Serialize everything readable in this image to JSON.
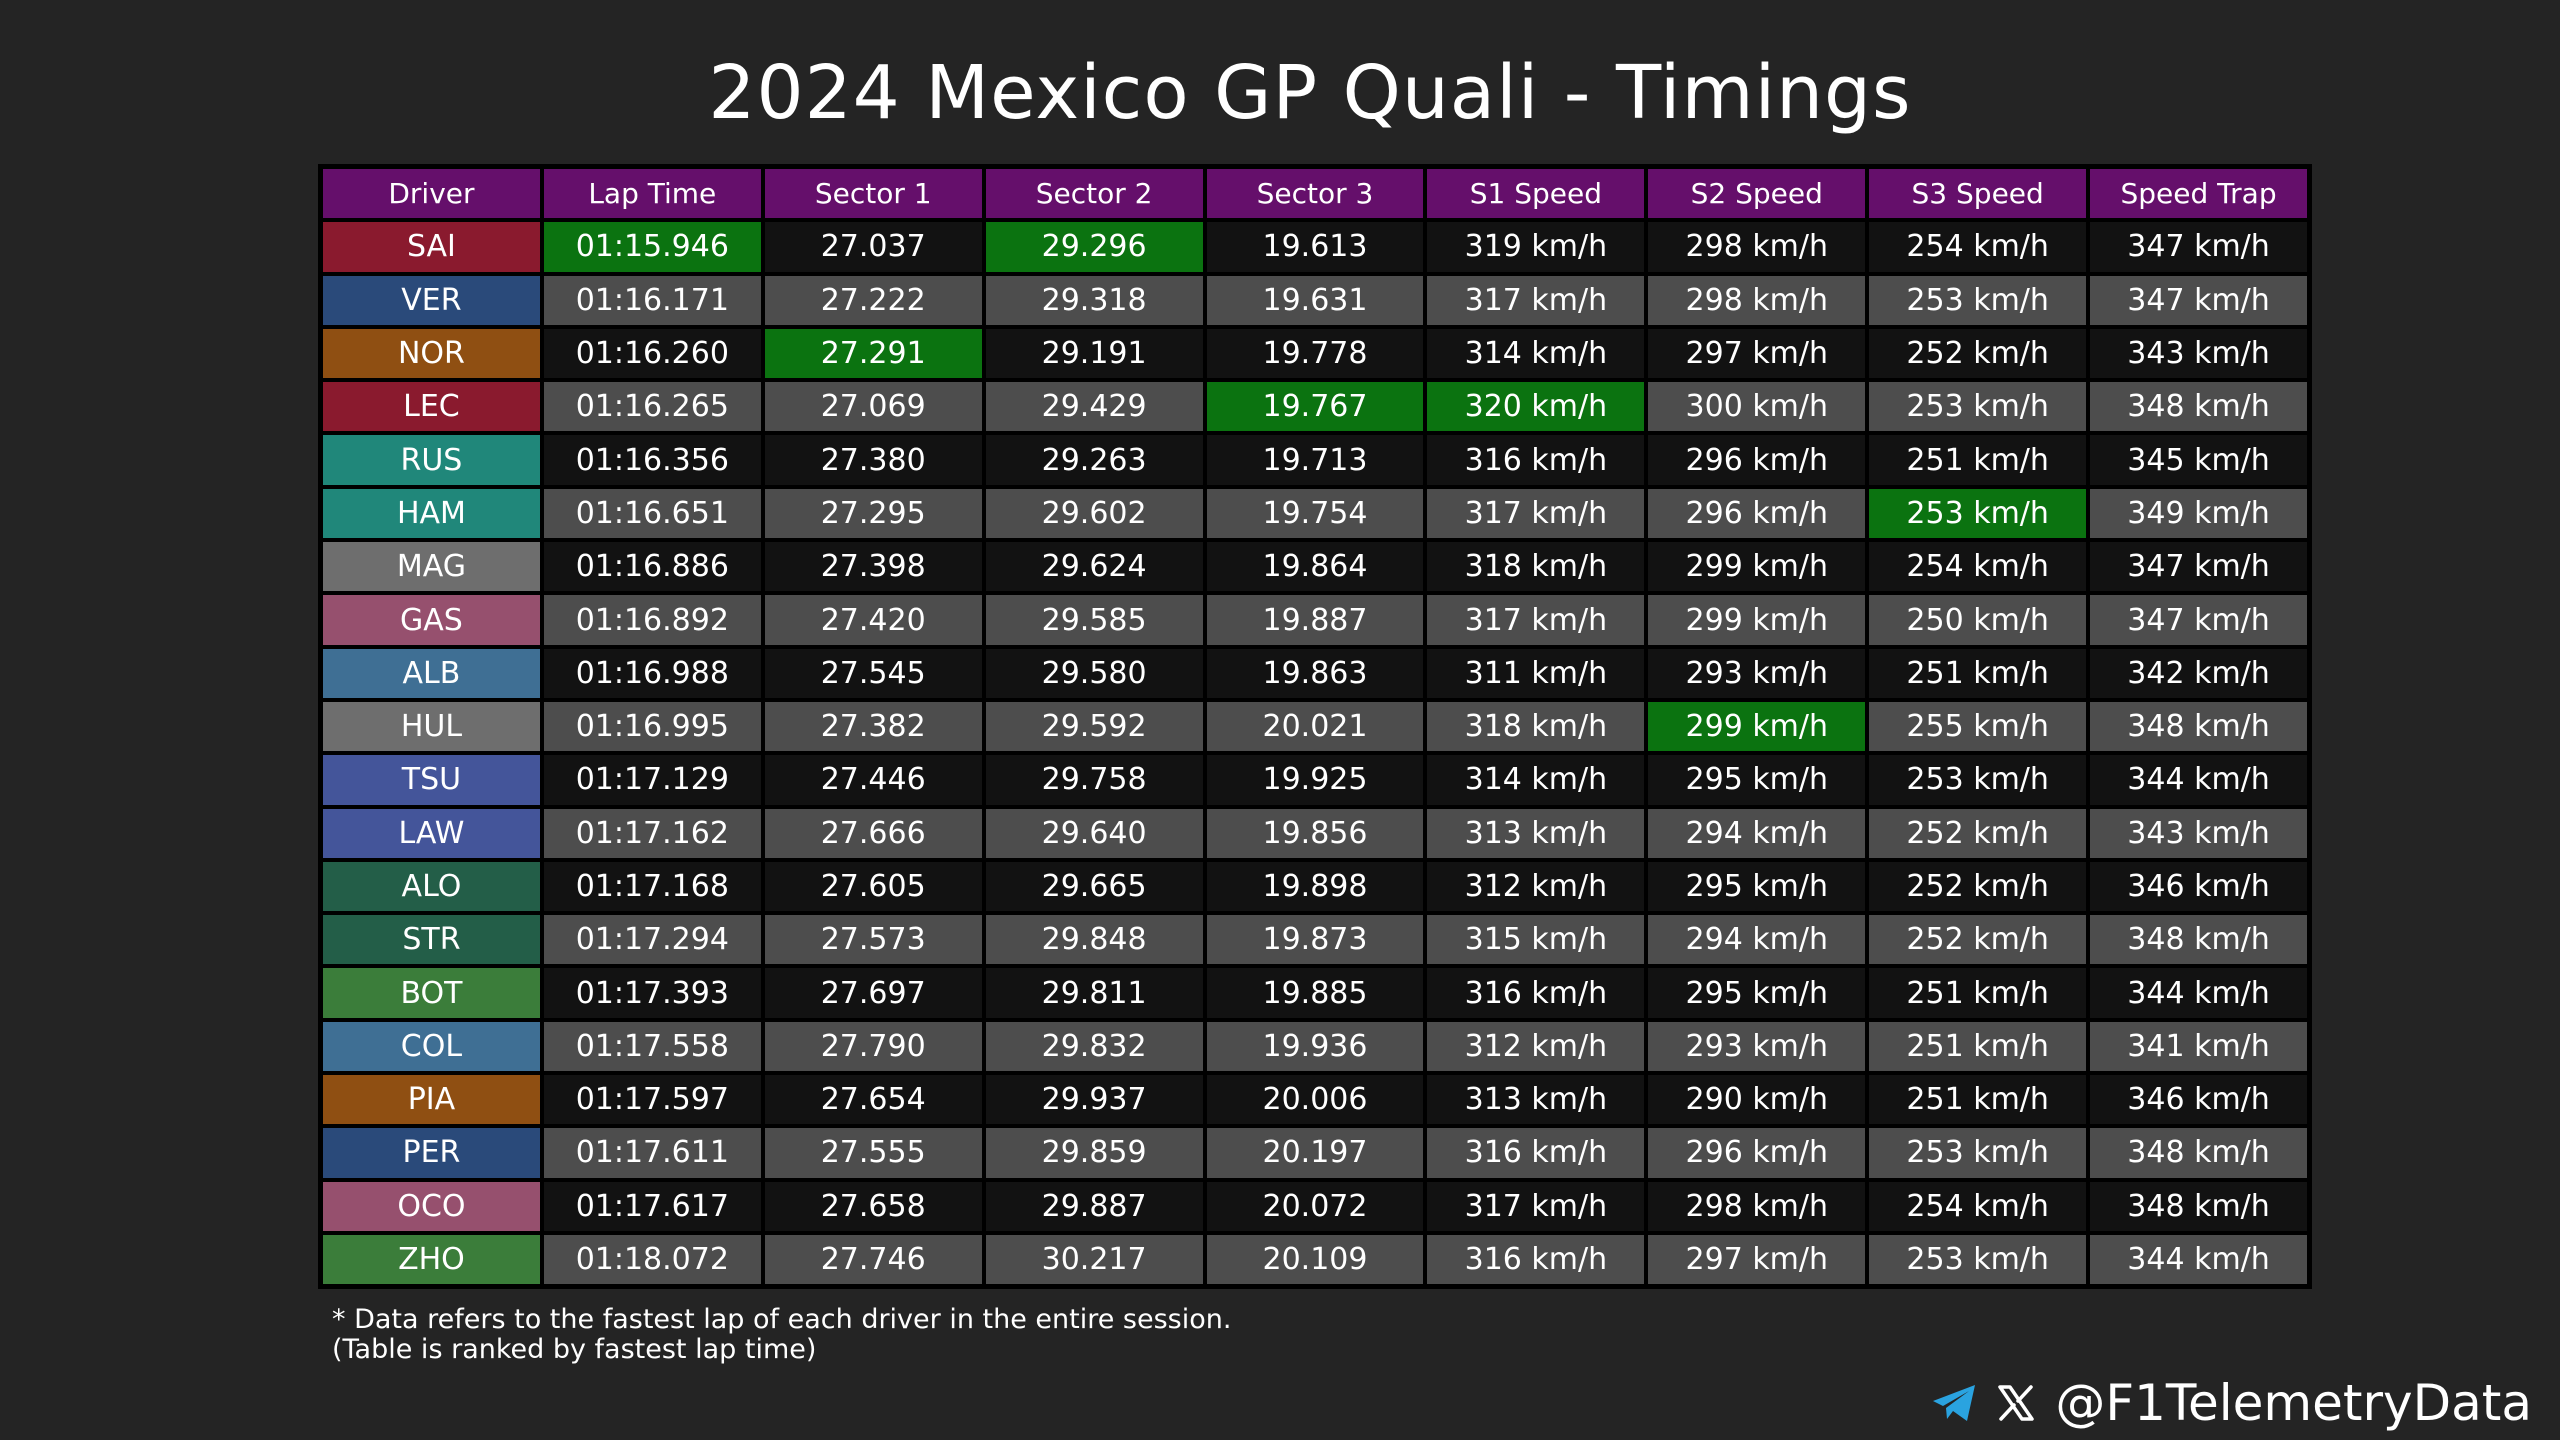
{
  "title": "2024 Mexico GP Quali - Timings",
  "watermark": "@F1TelemetryData",
  "chart_data": {
    "type": "table",
    "columns": [
      "Driver",
      "Lap Time",
      "Sector 1",
      "Sector 2",
      "Sector 3",
      "S1 Speed",
      "S2 Speed",
      "S3 Speed",
      "Speed Trap"
    ],
    "rows": [
      {
        "driver": "SAI",
        "team_color": "#8a1a2e",
        "cells": [
          "01:15.946",
          "27.037",
          "29.296",
          "19.613",
          "319 km/h",
          "298 km/h",
          "254 km/h",
          "347 km/h"
        ],
        "best": [
          1,
          3
        ]
      },
      {
        "driver": "VER",
        "team_color": "#2a4a7a",
        "cells": [
          "01:16.171",
          "27.222",
          "29.318",
          "19.631",
          "317 km/h",
          "298 km/h",
          "253 km/h",
          "347 km/h"
        ],
        "best": []
      },
      {
        "driver": "NOR",
        "team_color": "#8f4f12",
        "cells": [
          "01:16.260",
          "27.291",
          "29.191",
          "19.778",
          "314 km/h",
          "297 km/h",
          "252 km/h",
          "343 km/h"
        ],
        "best": [
          2
        ]
      },
      {
        "driver": "LEC",
        "team_color": "#8a1a2e",
        "cells": [
          "01:16.265",
          "27.069",
          "29.429",
          "19.767",
          "320 km/h",
          "300 km/h",
          "253 km/h",
          "348 km/h"
        ],
        "best": [
          4,
          5
        ]
      },
      {
        "driver": "RUS",
        "team_color": "#20877a",
        "cells": [
          "01:16.356",
          "27.380",
          "29.263",
          "19.713",
          "316 km/h",
          "296 km/h",
          "251 km/h",
          "345 km/h"
        ],
        "best": []
      },
      {
        "driver": "HAM",
        "team_color": "#20877a",
        "cells": [
          "01:16.651",
          "27.295",
          "29.602",
          "19.754",
          "317 km/h",
          "296 km/h",
          "253 km/h",
          "349 km/h"
        ],
        "best": [
          7
        ]
      },
      {
        "driver": "MAG",
        "team_color": "#6e6e6e",
        "cells": [
          "01:16.886",
          "27.398",
          "29.624",
          "19.864",
          "318 km/h",
          "299 km/h",
          "254 km/h",
          "347 km/h"
        ],
        "best": []
      },
      {
        "driver": "GAS",
        "team_color": "#96506e",
        "cells": [
          "01:16.892",
          "27.420",
          "29.585",
          "19.887",
          "317 km/h",
          "299 km/h",
          "250 km/h",
          "347 km/h"
        ],
        "best": []
      },
      {
        "driver": "ALB",
        "team_color": "#3f6f94",
        "cells": [
          "01:16.988",
          "27.545",
          "29.580",
          "19.863",
          "311 km/h",
          "293 km/h",
          "251 km/h",
          "342 km/h"
        ],
        "best": []
      },
      {
        "driver": "HUL",
        "team_color": "#6e6e6e",
        "cells": [
          "01:16.995",
          "27.382",
          "29.592",
          "20.021",
          "318 km/h",
          "299 km/h",
          "255 km/h",
          "348 km/h"
        ],
        "best": [
          6
        ]
      },
      {
        "driver": "TSU",
        "team_color": "#44559a",
        "cells": [
          "01:17.129",
          "27.446",
          "29.758",
          "19.925",
          "314 km/h",
          "295 km/h",
          "253 km/h",
          "344 km/h"
        ],
        "best": []
      },
      {
        "driver": "LAW",
        "team_color": "#44559a",
        "cells": [
          "01:17.162",
          "27.666",
          "29.640",
          "19.856",
          "313 km/h",
          "294 km/h",
          "252 km/h",
          "343 km/h"
        ],
        "best": []
      },
      {
        "driver": "ALO",
        "team_color": "#235e48",
        "cells": [
          "01:17.168",
          "27.605",
          "29.665",
          "19.898",
          "312 km/h",
          "295 km/h",
          "252 km/h",
          "346 km/h"
        ],
        "best": []
      },
      {
        "driver": "STR",
        "team_color": "#235e48",
        "cells": [
          "01:17.294",
          "27.573",
          "29.848",
          "19.873",
          "315 km/h",
          "294 km/h",
          "252 km/h",
          "348 km/h"
        ],
        "best": []
      },
      {
        "driver": "BOT",
        "team_color": "#3b7d3a",
        "cells": [
          "01:17.393",
          "27.697",
          "29.811",
          "19.885",
          "316 km/h",
          "295 km/h",
          "251 km/h",
          "344 km/h"
        ],
        "best": []
      },
      {
        "driver": "COL",
        "team_color": "#3f6f94",
        "cells": [
          "01:17.558",
          "27.790",
          "29.832",
          "19.936",
          "312 km/h",
          "293 km/h",
          "251 km/h",
          "341 km/h"
        ],
        "best": []
      },
      {
        "driver": "PIA",
        "team_color": "#8f4f12",
        "cells": [
          "01:17.597",
          "27.654",
          "29.937",
          "20.006",
          "313 km/h",
          "290 km/h",
          "251 km/h",
          "346 km/h"
        ],
        "best": []
      },
      {
        "driver": "PER",
        "team_color": "#2a4a7a",
        "cells": [
          "01:17.611",
          "27.555",
          "29.859",
          "20.197",
          "316 km/h",
          "296 km/h",
          "253 km/h",
          "348 km/h"
        ],
        "best": []
      },
      {
        "driver": "OCO",
        "team_color": "#96506e",
        "cells": [
          "01:17.617",
          "27.658",
          "29.887",
          "20.072",
          "317 km/h",
          "298 km/h",
          "254 km/h",
          "348 km/h"
        ],
        "best": []
      },
      {
        "driver": "ZHO",
        "team_color": "#3b7d3a",
        "cells": [
          "01:18.072",
          "27.746",
          "30.217",
          "20.109",
          "316 km/h",
          "297 km/h",
          "253 km/h",
          "344 km/h"
        ],
        "best": []
      }
    ]
  },
  "colors": {
    "header": "#650f6b",
    "best": "#0b7310",
    "row_dark": "#121212",
    "row_light": "#4d4d4d"
  },
  "footnote": {
    "line1": "* Data refers to the fastest lap of each driver in the entire session.",
    "line2": "(Table is ranked by fastest lap time)"
  },
  "social": {
    "icons": [
      "telegram-icon",
      "x-icon"
    ],
    "handle": "@F1TelemetryData"
  }
}
